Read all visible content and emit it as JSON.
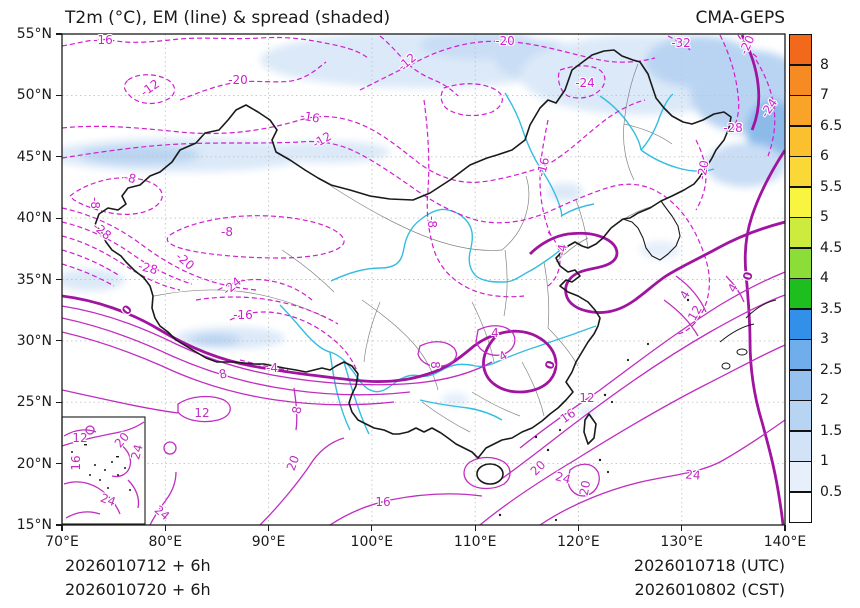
{
  "header": {
    "title_left": "T2m (°C), EM (line) & spread (shaded)",
    "model_right": "CMA-GEPS"
  },
  "footer": {
    "init_utc": "2026010712 + 6h",
    "init_cst": "2026010720 + 6h",
    "valid_utc": "2026010718 (UTC)",
    "valid_cst": "2026010802 (CST)"
  },
  "axes": {
    "lon_ticks": [
      "70°E",
      "80°E",
      "90°E",
      "100°E",
      "110°E",
      "120°E",
      "130°E",
      "140°E"
    ],
    "lat_ticks": [
      "55°N",
      "50°N",
      "45°N",
      "40°N",
      "35°N",
      "30°N",
      "25°N",
      "20°N",
      "15°N"
    ]
  },
  "chart_data": {
    "type": "contour-map",
    "variable": "T2m (°C)",
    "statistic": "ensemble mean (line contours) and ensemble spread (shaded)",
    "model": "CMA-GEPS",
    "region": {
      "lon_range": [
        70,
        140
      ],
      "lat_range": [
        15,
        55
      ]
    },
    "contour_interval": 4,
    "line_contour_values_visible": [
      -32,
      -28,
      -24,
      -20,
      -16,
      -12,
      -8,
      -4,
      0,
      4,
      8,
      12,
      16,
      20,
      24
    ],
    "spread_colorbar": {
      "boundary_labels": [
        "0.5",
        "1",
        "1.5",
        "2",
        "2.5",
        "3",
        "3.5",
        "4",
        "4.5",
        "5",
        "5.5",
        "6",
        "6.5",
        "7",
        "8"
      ],
      "colors_bottom_to_top": [
        "#ffffff",
        "#e7f0fa",
        "#d2e3f7",
        "#b7d4f3",
        "#97c2ef",
        "#6fadeb",
        "#3390e8",
        "#1ebe1e",
        "#8cdd38",
        "#cdeb3e",
        "#f8f440",
        "#fad936",
        "#fbc02e",
        "#faa329",
        "#f78b23",
        "#f2691c"
      ]
    },
    "contour_labels": [
      [
        "-16",
        103,
        40,
        0,
        "dashed"
      ],
      [
        "-20",
        238,
        80,
        0,
        "dashed"
      ],
      [
        "-12",
        150,
        88,
        -35,
        "dashed"
      ],
      [
        "-20",
        505,
        41,
        0,
        "dashed"
      ],
      [
        "-12",
        407,
        62,
        -40,
        "dashed"
      ],
      [
        "-24",
        585,
        83,
        0,
        "dashed"
      ],
      [
        "-32",
        681,
        43,
        0,
        "dashed"
      ],
      [
        "-20",
        747,
        45,
        -65,
        "dashed"
      ],
      [
        "-24",
        769,
        108,
        -55,
        "dashed"
      ],
      [
        "-28",
        733,
        128,
        0,
        "dashed"
      ],
      [
        "-20",
        703,
        170,
        -80,
        "dashed"
      ],
      [
        "-16",
        310,
        117,
        10,
        "dashed"
      ],
      [
        "-12",
        322,
        140,
        -30,
        "dashed"
      ],
      [
        "-16",
        543,
        167,
        -75,
        "dashed"
      ],
      [
        "-8",
        130,
        178,
        15,
        "dashed"
      ],
      [
        "-8",
        95,
        203,
        90,
        "dashed"
      ],
      [
        "-28",
        102,
        231,
        40,
        "dashed"
      ],
      [
        "-8",
        227,
        232,
        0,
        "dashed"
      ],
      [
        "-20",
        185,
        261,
        40,
        "dashed"
      ],
      [
        "-28",
        148,
        268,
        15,
        "dashed"
      ],
      [
        "-8",
        432,
        222,
        90,
        "dashed"
      ],
      [
        "-24",
        232,
        286,
        -40,
        "dashed"
      ],
      [
        "-16",
        243,
        315,
        0,
        "dashed"
      ],
      [
        "-4",
        562,
        250,
        -80,
        "dashed"
      ],
      [
        "-4",
        272,
        368,
        0,
        "dashed"
      ],
      [
        "0",
        127,
        310,
        -50,
        "thick"
      ],
      [
        "0",
        550,
        365,
        -70,
        "thick"
      ],
      [
        "0",
        748,
        276,
        -75,
        "thick"
      ],
      [
        "8",
        223,
        374,
        -15,
        "solid"
      ],
      [
        "12",
        202,
        413,
        0,
        "solid"
      ],
      [
        "8",
        297,
        410,
        -80,
        "solid"
      ],
      [
        "8",
        435,
        365,
        90,
        "solid"
      ],
      [
        "4",
        495,
        333,
        0,
        "solid"
      ],
      [
        "4",
        503,
        356,
        -30,
        "solid"
      ],
      [
        "4",
        685,
        295,
        -60,
        "solid"
      ],
      [
        "12",
        695,
        313,
        -60,
        "solid"
      ],
      [
        "4",
        733,
        288,
        -60,
        "solid"
      ],
      [
        "12",
        587,
        398,
        0,
        "solid"
      ],
      [
        "16",
        568,
        416,
        -35,
        "solid"
      ],
      [
        "20",
        538,
        468,
        -45,
        "solid"
      ],
      [
        "24",
        563,
        478,
        15,
        "solid"
      ],
      [
        "20",
        585,
        488,
        -80,
        "solid"
      ],
      [
        "24",
        693,
        475,
        5,
        "solid"
      ],
      [
        "16",
        383,
        502,
        0,
        "solid"
      ],
      [
        "24",
        162,
        513,
        40,
        "solid"
      ],
      [
        "20",
        293,
        463,
        -70,
        "solid"
      ],
      [
        "12",
        80,
        438,
        0,
        "solid"
      ],
      [
        "20",
        122,
        440,
        -50,
        "solid"
      ],
      [
        "16",
        76,
        463,
        -90,
        "solid"
      ],
      [
        "24",
        137,
        452,
        -75,
        "solid"
      ],
      [
        "24",
        108,
        500,
        20,
        "solid"
      ]
    ],
    "style_legend": {
      "dashed_magenta": "negative EM temperature contours",
      "solid_magenta": "positive EM temperature contours",
      "thick_magenta": "0 °C EM contour",
      "blue_shading": "ensemble spread (°C)"
    }
  },
  "colors": {
    "contour_dashed": "#cf1fcf",
    "contour_solid": "#c02ec0",
    "contour_thick": "#a014a0",
    "river": "#35bde0",
    "country_border": "#1a1a1a",
    "province_border": "#777777",
    "spread_light": "#dbe9f8",
    "spread_mid": "#b9d4f2",
    "spread_dark": "#8cbbea"
  }
}
